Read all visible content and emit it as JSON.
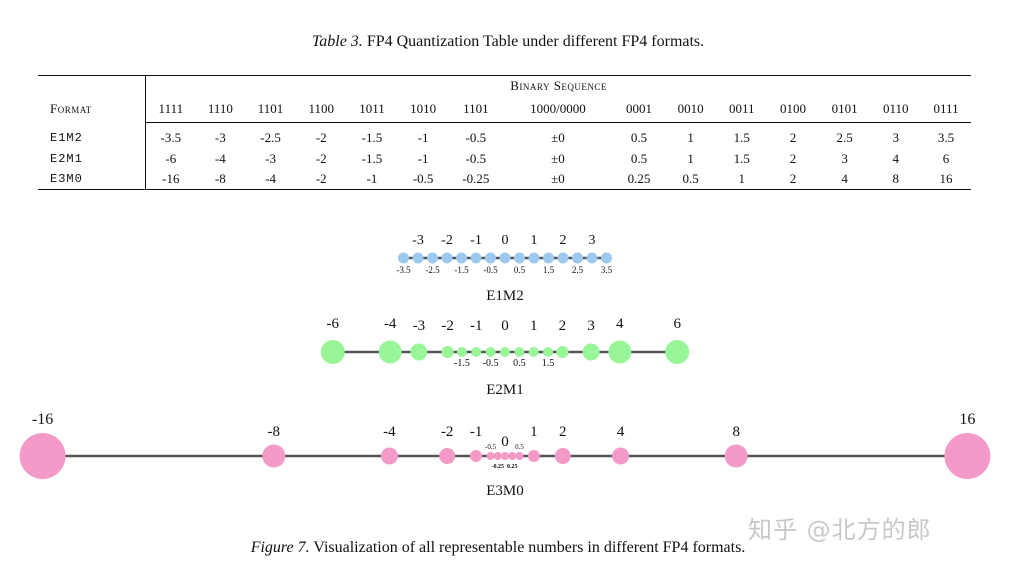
{
  "table_caption": {
    "label": "Table 3.",
    "text": " FP4 Quantization Table under different FP4 formats."
  },
  "table": {
    "group_header": "Binary Sequence",
    "format_header": "Format",
    "columns": [
      "1111",
      "1110",
      "1101",
      "1100",
      "1011",
      "1010",
      "1101",
      "1000/0000",
      "0001",
      "0010",
      "0011",
      "0100",
      "0101",
      "0110",
      "0111"
    ],
    "rows": [
      {
        "format": "E1M2",
        "values": [
          "-3.5",
          "-3",
          "-2.5",
          "-2",
          "-1.5",
          "-1",
          "-0.5",
          "±0",
          "0.5",
          "1",
          "1.5",
          "2",
          "2.5",
          "3",
          "3.5"
        ]
      },
      {
        "format": "E2M1",
        "values": [
          "-6",
          "-4",
          "-3",
          "-2",
          "-1.5",
          "-1",
          "-0.5",
          "±0",
          "0.5",
          "1",
          "1.5",
          "2",
          "3",
          "4",
          "6"
        ]
      },
      {
        "format": "E3M0",
        "values": [
          "-16",
          "-8",
          "-4",
          "-2",
          "-1",
          "-0.5",
          "-0.25",
          "±0",
          "0.25",
          "0.5",
          "1",
          "2",
          "4",
          "8",
          "16"
        ]
      }
    ]
  },
  "figure_caption": {
    "label": "Figure 7.",
    "text": " Visualization of all representable numbers in different FP4 formats."
  },
  "watermark": "知乎 @北方的郎",
  "colors": {
    "e1m2": "#9ec9ee",
    "e2m1": "#98f598",
    "e3m0": "#f49ac8",
    "axis": "#555555"
  },
  "chart_data": [
    {
      "type": "scatter",
      "title": "E1M2",
      "values": [
        -3.5,
        -3,
        -2.5,
        -2,
        -1.5,
        -1,
        -0.5,
        0,
        0.5,
        1,
        1.5,
        2,
        2.5,
        3,
        3.5
      ],
      "major_labels": [
        "-3",
        "-2",
        "-1",
        "0",
        "1",
        "2",
        "3"
      ],
      "minor_labels": [
        "-3.5",
        "-2.5",
        "-1.5",
        "-0.5",
        "0.5",
        "1.5",
        "2.5",
        "3.5"
      ]
    },
    {
      "type": "scatter",
      "title": "E2M1",
      "values": [
        -6,
        -4,
        -3,
        -2,
        -1.5,
        -1,
        -0.5,
        0,
        0.5,
        1,
        1.5,
        2,
        3,
        4,
        6
      ],
      "major_labels": [
        "-6",
        "-4",
        "-3",
        "-2",
        "-1",
        "0",
        "1",
        "2",
        "3",
        "4",
        "6"
      ],
      "minor_labels": [
        "-1.5",
        "-0.5",
        "0.5",
        "1.5"
      ]
    },
    {
      "type": "scatter",
      "title": "E3M0",
      "values": [
        -16,
        -8,
        -4,
        -2,
        -1,
        -0.5,
        -0.25,
        0,
        0.25,
        0.5,
        1,
        2,
        4,
        8,
        16
      ],
      "major_labels": [
        "-16",
        "-8",
        "-4",
        "-2",
        "-1",
        "0",
        "1",
        "2",
        "4",
        "8",
        "16"
      ],
      "minor_labels": [
        "-0.5",
        "0.5",
        "-0.25",
        "0.25"
      ]
    }
  ]
}
